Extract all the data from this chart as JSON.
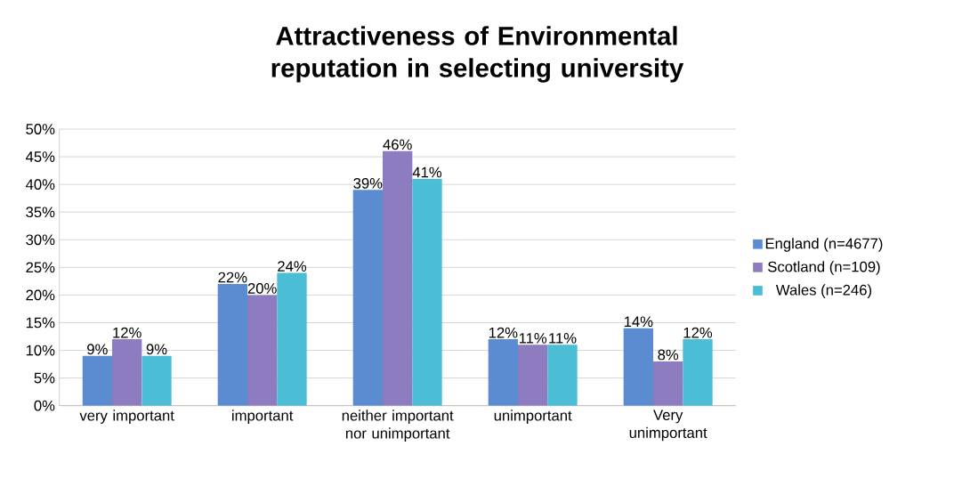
{
  "chart_data": {
    "type": "bar",
    "title": "Attractiveness of Environmental reputation in selecting university",
    "categories": [
      "very important",
      "important",
      "neither important nor unimportant",
      "unimportant",
      "Very unimportant"
    ],
    "series": [
      {
        "name": "England (n=4677)",
        "color": "#5b8bd0",
        "values": [
          9,
          22,
          39,
          12,
          14
        ],
        "value_labels": [
          "9%",
          "22%",
          "39%",
          "12%",
          "14%"
        ]
      },
      {
        "name": "Scotland (n=109)",
        "color": "#8d7cc0",
        "values": [
          12,
          20,
          46,
          11,
          8
        ],
        "value_labels": [
          "12%",
          "20%",
          "46%",
          "11%",
          "8%"
        ]
      },
      {
        "name": "Wales (n=246)",
        "color": "#4bbdd4",
        "values": [
          9,
          24,
          41,
          11,
          12
        ],
        "value_labels": [
          "9%",
          "24%",
          "41%",
          "11%",
          "12%"
        ]
      }
    ],
    "ylim": [
      0,
      50
    ],
    "yticks": [
      {
        "value": 0,
        "label": "0%"
      },
      {
        "value": 5,
        "label": "5%"
      },
      {
        "value": 10,
        "label": "10%"
      },
      {
        "value": 15,
        "label": "15%"
      },
      {
        "value": 20,
        "label": "20%"
      },
      {
        "value": 25,
        "label": "25%"
      },
      {
        "value": 30,
        "label": "30%"
      },
      {
        "value": 35,
        "label": "35%"
      },
      {
        "value": 40,
        "label": "40%"
      },
      {
        "value": 45,
        "label": "45%"
      },
      {
        "value": 50,
        "label": "50%"
      }
    ],
    "grid": "y",
    "legend": "right"
  }
}
